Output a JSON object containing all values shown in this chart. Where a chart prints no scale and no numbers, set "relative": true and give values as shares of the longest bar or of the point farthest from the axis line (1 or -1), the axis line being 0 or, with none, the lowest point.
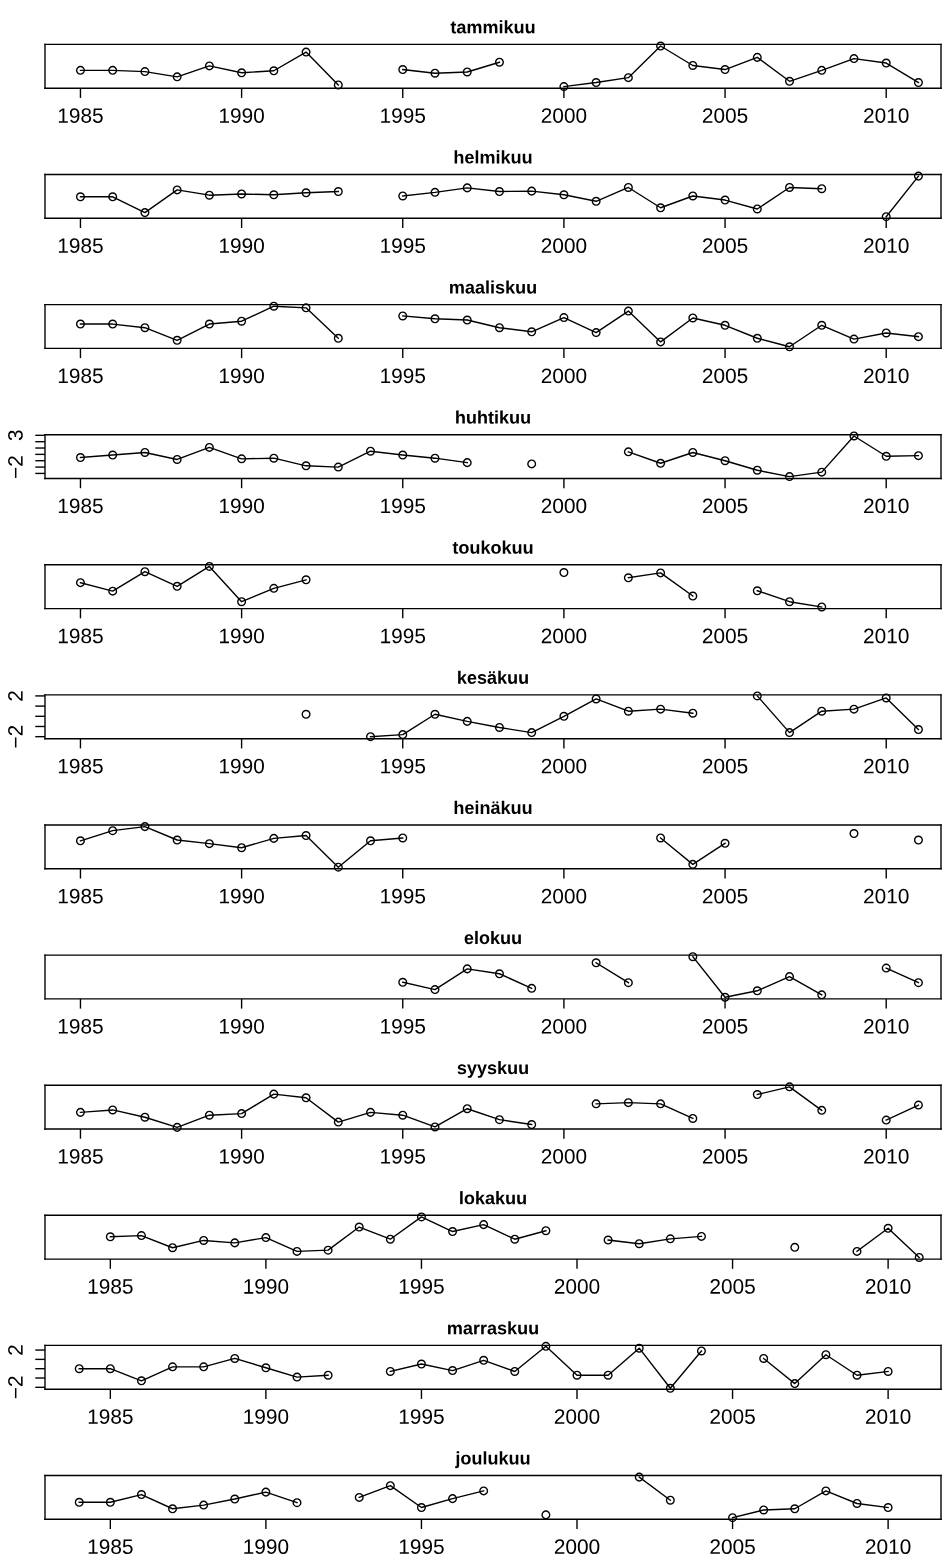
{
  "chart_data": [
    {
      "type": "line",
      "title": "tammikuu",
      "relative": true,
      "marker": "circle",
      "xlim": [
        1983.9,
        2011.7
      ],
      "xticks": [
        1985,
        1990,
        1995,
        2000,
        2005,
        2010
      ],
      "x": [
        1985,
        1986,
        1987,
        1988,
        1989,
        1990,
        1991,
        1992,
        1993,
        1994,
        1995,
        1996,
        1997,
        1998,
        1999,
        2000,
        2001,
        2002,
        2003,
        2004,
        2005,
        2006,
        2007,
        2008,
        2009,
        2010,
        2011
      ],
      "series": [
        {
          "color": "#000000",
          "values": [
            0.4,
            0.4,
            0.37,
            0.24,
            0.51,
            0.34,
            0.39,
            0.85,
            0.04,
            null,
            0.42,
            0.33,
            0.36,
            0.6,
            null,
            0,
            0.1,
            0.22,
            1,
            0.52,
            0.42,
            0.72,
            0.13,
            0.4,
            0.69,
            0.58,
            0.1
          ]
        }
      ]
    },
    {
      "type": "line",
      "title": "helmikuu",
      "relative": true,
      "marker": "circle",
      "xlim": [
        1983.9,
        2011.7
      ],
      "xticks": [
        1985,
        1990,
        1995,
        2000,
        2005,
        2010
      ],
      "x": [
        1985,
        1986,
        1987,
        1988,
        1989,
        1990,
        1991,
        1992,
        1993,
        1994,
        1995,
        1996,
        1997,
        1998,
        1999,
        2000,
        2001,
        2002,
        2003,
        2004,
        2005,
        2006,
        2007,
        2008,
        2009,
        2010,
        2011
      ],
      "series": [
        {
          "color": "#000000",
          "values": [
            0.49,
            0.49,
            0.1,
            0.66,
            0.53,
            0.56,
            0.54,
            0.59,
            0.62,
            null,
            0.51,
            0.6,
            0.71,
            0.62,
            0.63,
            0.54,
            0.38,
            0.72,
            0.22,
            0.51,
            0.41,
            0.19,
            0.72,
            0.69,
            null,
            0,
            1
          ]
        }
      ]
    },
    {
      "type": "line",
      "title": "maaliskuu",
      "relative": true,
      "marker": "circle",
      "xlim": [
        1983.9,
        2011.7
      ],
      "xticks": [
        1985,
        1990,
        1995,
        2000,
        2005,
        2010
      ],
      "x": [
        1985,
        1986,
        1987,
        1988,
        1989,
        1990,
        1991,
        1992,
        1993,
        1994,
        1995,
        1996,
        1997,
        1998,
        1999,
        2000,
        2001,
        2002,
        2003,
        2004,
        2005,
        2006,
        2007,
        2008,
        2009,
        2010,
        2011
      ],
      "series": [
        {
          "color": "#000000",
          "values": [
            0.56,
            0.56,
            0.47,
            0.16,
            0.56,
            0.63,
            1,
            0.96,
            0.21,
            null,
            0.76,
            0.69,
            0.66,
            0.47,
            0.37,
            0.72,
            0.35,
            0.88,
            0.12,
            0.71,
            0.53,
            0.21,
            0,
            0.53,
            0.19,
            0.34,
            0.25
          ]
        }
      ]
    },
    {
      "type": "line",
      "title": "huhtikuu",
      "marker": "circle",
      "xlim": [
        1983.9,
        2011.7
      ],
      "xticks": [
        1985,
        1990,
        1995,
        2000,
        2005,
        2010
      ],
      "ylim": [
        -3.8,
        3.1
      ],
      "yticks": [
        {
          "value": -3,
          "label": null
        },
        {
          "value": -2,
          "label": "−2"
        },
        {
          "value": -1,
          "label": null
        },
        {
          "value": 0,
          "label": null
        },
        {
          "value": 1,
          "label": null
        },
        {
          "value": 2,
          "label": null
        },
        3
      ],
      "x": [
        1985,
        1986,
        1987,
        1988,
        1989,
        1990,
        1991,
        1992,
        1993,
        1994,
        1995,
        1996,
        1997,
        1998,
        1999,
        2000,
        2001,
        2002,
        2003,
        2004,
        2005,
        2006,
        2007,
        2008,
        2009,
        2010,
        2011
      ],
      "series": [
        {
          "color": "#000000",
          "values": [
            -0.5,
            -0.1,
            0.3,
            -0.8,
            1.1,
            -0.7,
            -0.6,
            -1.8,
            -2.0,
            0.5,
            -0.1,
            -0.6,
            -1.3,
            null,
            -1.5,
            null,
            null,
            0.4,
            -1.4,
            0.3,
            -1.0,
            -2.5,
            -3.5,
            -2.8,
            2.9,
            -0.3,
            -0.2
          ]
        }
      ]
    },
    {
      "type": "line",
      "title": "toukokuu",
      "relative": true,
      "marker": "circle",
      "xlim": [
        1983.9,
        2011.7
      ],
      "xticks": [
        1985,
        1990,
        1995,
        2000,
        2005,
        2010
      ],
      "x": [
        1985,
        1986,
        1987,
        1988,
        1989,
        1990,
        1991,
        1992,
        1993,
        1994,
        1995,
        1996,
        1997,
        1998,
        1999,
        2000,
        2001,
        2002,
        2003,
        2004,
        2005,
        2006,
        2007,
        2008
      ],
      "series": [
        {
          "color": "#000000",
          "values": [
            0.6,
            0.39,
            0.87,
            0.51,
            1,
            0.13,
            0.46,
            0.67,
            null,
            null,
            null,
            null,
            null,
            null,
            null,
            0.85,
            null,
            0.72,
            0.84,
            0.27,
            null,
            0.4,
            0.13,
            0
          ]
        }
      ]
    },
    {
      "type": "line",
      "title": "kesäkuu",
      "marker": "circle",
      "xlim": [
        1983.9,
        2011.7
      ],
      "xticks": [
        1985,
        1990,
        1995,
        2000,
        2005,
        2010
      ],
      "ylim": [
        -2.2,
        2.1
      ],
      "yticks": [
        {
          "value": -2,
          "label": "−2"
        },
        {
          "value": -1,
          "label": null
        },
        {
          "value": 0,
          "label": null
        },
        {
          "value": 1,
          "label": null
        },
        2
      ],
      "x": [
        1992,
        1993,
        1994,
        1995,
        1996,
        1997,
        1998,
        1999,
        2000,
        2001,
        2002,
        2003,
        2004,
        2005,
        2006,
        2007,
        2008,
        2009,
        2010,
        2011
      ],
      "series": [
        {
          "color": "#000000",
          "values": [
            0.2,
            null,
            -2.0,
            -1.8,
            0.2,
            -0.5,
            -1.1,
            -1.6,
            0.0,
            1.7,
            0.5,
            0.7,
            0.3,
            null,
            2.0,
            -1.6,
            0.5,
            0.7,
            1.8,
            -1.3
          ]
        }
      ]
    },
    {
      "type": "line",
      "title": "heinäkuu",
      "relative": true,
      "marker": "circle",
      "xlim": [
        1983.9,
        2011.7
      ],
      "xticks": [
        1985,
        1990,
        1995,
        2000,
        2005,
        2010
      ],
      "x": [
        1985,
        1986,
        1987,
        1988,
        1989,
        1990,
        1991,
        1992,
        1993,
        1994,
        1995,
        1996,
        1997,
        1998,
        1999,
        2000,
        2001,
        2002,
        2003,
        2004,
        2005,
        2006,
        2007,
        2008,
        2009,
        2010,
        2011
      ],
      "series": [
        {
          "color": "#000000",
          "values": [
            0.65,
            0.9,
            1,
            0.67,
            0.58,
            0.48,
            0.71,
            0.78,
            0,
            0.65,
            0.72,
            null,
            null,
            null,
            null,
            null,
            null,
            null,
            0.72,
            0.07,
            0.59,
            null,
            null,
            null,
            0.83,
            null,
            0.67
          ]
        }
      ]
    },
    {
      "type": "line",
      "title": "elokuu",
      "relative": true,
      "marker": "circle",
      "xlim": [
        1983.9,
        2011.7
      ],
      "xticks": [
        1985,
        1990,
        1995,
        2000,
        2005,
        2010
      ],
      "x": [
        1995,
        1996,
        1997,
        1998,
        1999,
        2000,
        2001,
        2002,
        2003,
        2004,
        2005,
        2006,
        2007,
        2008,
        2009,
        2010,
        2011
      ],
      "series": [
        {
          "color": "#000000",
          "values": [
            0.37,
            0.19,
            0.7,
            0.58,
            0.22,
            null,
            0.85,
            0.36,
            null,
            1,
            0,
            0.16,
            0.51,
            0.06,
            null,
            0.72,
            0.36
          ]
        }
      ]
    },
    {
      "type": "line",
      "title": "syyskuu",
      "relative": true,
      "marker": "circle",
      "xlim": [
        1983.9,
        2011.7
      ],
      "xticks": [
        1985,
        1990,
        1995,
        2000,
        2005,
        2010
      ],
      "x": [
        1985,
        1986,
        1987,
        1988,
        1989,
        1990,
        1991,
        1992,
        1993,
        1994,
        1995,
        1996,
        1997,
        1998,
        1999,
        2000,
        2001,
        2002,
        2003,
        2004,
        2005,
        2006,
        2007,
        2008,
        2009,
        2010,
        2011
      ],
      "series": [
        {
          "color": "#000000",
          "values": [
            0.37,
            0.43,
            0.25,
            0,
            0.3,
            0.34,
            0.82,
            0.73,
            0.13,
            0.37,
            0.3,
            0.01,
            0.46,
            0.19,
            0.07,
            null,
            0.58,
            0.61,
            0.58,
            0.22,
            null,
            0.81,
            1,
            0.42,
            null,
            0.18,
            0.55
          ]
        }
      ]
    },
    {
      "type": "line",
      "title": "lokakuu",
      "relative": true,
      "marker": "circle",
      "xlim": [
        1982.9,
        2011.7
      ],
      "xticks": [
        1985,
        1990,
        1995,
        2000,
        2005,
        2010
      ],
      "x": [
        1985,
        1986,
        1987,
        1988,
        1989,
        1990,
        1991,
        1992,
        1993,
        1994,
        1995,
        1996,
        1997,
        1998,
        1999,
        2000,
        2001,
        2002,
        2003,
        2004,
        2005,
        2006,
        2007,
        2008,
        2009,
        2010,
        2011
      ],
      "series": [
        {
          "color": "#000000",
          "values": [
            0.51,
            0.54,
            0.24,
            0.42,
            0.36,
            0.49,
            0.15,
            0.18,
            0.75,
            0.45,
            1,
            0.64,
            0.81,
            0.45,
            0.66,
            null,
            0.43,
            0.34,
            0.46,
            0.52,
            null,
            null,
            0.25,
            null,
            0.15,
            0.72,
            0
          ]
        }
      ]
    },
    {
      "type": "line",
      "title": "marraskuu",
      "marker": "circle",
      "xlim": [
        1982.9,
        2011.7
      ],
      "xticks": [
        1985,
        1990,
        1995,
        2000,
        2005,
        2010
      ],
      "ylim": [
        -2.2,
        2.5
      ],
      "yticks": [
        {
          "value": -2,
          "label": "−2"
        },
        {
          "value": -1,
          "label": null
        },
        {
          "value": 0,
          "label": null
        },
        {
          "value": 1,
          "label": null
        },
        2
      ],
      "x": [
        1984,
        1985,
        1986,
        1987,
        1988,
        1989,
        1990,
        1991,
        1992,
        1993,
        1994,
        1995,
        1996,
        1997,
        1998,
        1999,
        2000,
        2001,
        2002,
        2003,
        2004,
        2005,
        2006,
        2007,
        2008,
        2009,
        2010
      ],
      "series": [
        {
          "color": "#000000",
          "values": [
            0.0,
            0.0,
            -1.3,
            0.2,
            0.2,
            1.1,
            0.1,
            -0.9,
            -0.7,
            null,
            -0.3,
            0.5,
            -0.2,
            0.9,
            -0.3,
            2.4,
            -0.7,
            -0.7,
            2.2,
            -2.1,
            1.9,
            null,
            1.1,
            -1.6,
            1.5,
            -0.7,
            -0.3
          ]
        }
      ]
    },
    {
      "type": "line",
      "title": "joulukuu",
      "relative": true,
      "marker": "circle",
      "xlim": [
        1982.9,
        2011.7
      ],
      "xticks": [
        1985,
        1990,
        1995,
        2000,
        2005,
        2010
      ],
      "x": [
        1984,
        1985,
        1986,
        1987,
        1988,
        1989,
        1990,
        1991,
        1992,
        1993,
        1994,
        1995,
        1996,
        1997,
        1998,
        1999,
        2000,
        2001,
        2002,
        2003,
        2004,
        2005,
        2006,
        2007,
        2008,
        2009,
        2010
      ],
      "series": [
        {
          "color": "#000000",
          "values": [
            0.38,
            0.38,
            0.57,
            0.22,
            0.31,
            0.46,
            0.63,
            0.37,
            null,
            0.5,
            0.79,
            0.25,
            0.47,
            0.66,
            null,
            0.07,
            null,
            null,
            1,
            0.43,
            null,
            0,
            0.19,
            0.22,
            0.66,
            0.35,
            0.25
          ]
        }
      ]
    }
  ]
}
